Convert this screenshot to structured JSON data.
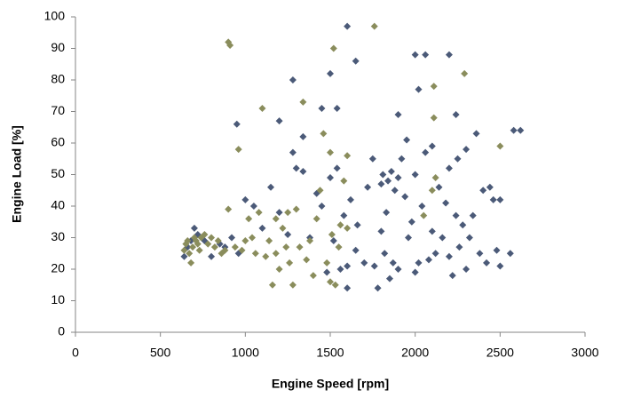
{
  "chart_data": {
    "type": "scatter",
    "x_label": "Engine Speed [rpm]",
    "y_label": "Engine Load [%]",
    "xlim": [
      0,
      3000
    ],
    "xticks": [
      0,
      500,
      1000,
      1500,
      2000,
      2500,
      3000
    ],
    "ylim": [
      0,
      100
    ],
    "yticks": [
      0,
      10,
      20,
      30,
      40,
      50,
      60,
      70,
      80,
      90,
      100
    ],
    "grid": false,
    "series": [
      {
        "color": "#4b5a78",
        "x": [
          640,
          660,
          680,
          700,
          720,
          760,
          800,
          850,
          880,
          920,
          960,
          1000,
          1050,
          1100,
          1150,
          1200,
          1250,
          1280,
          1300,
          1340,
          1380,
          1420,
          1450,
          1480,
          1500,
          1520,
          1540,
          1560,
          1580,
          1600,
          1600,
          1620,
          1650,
          1660,
          1700,
          1720,
          1750,
          1760,
          1780,
          1800,
          1800,
          1810,
          1820,
          1830,
          1840,
          1850,
          1860,
          1870,
          1880,
          1900,
          1900,
          1920,
          1940,
          1950,
          1960,
          1980,
          2000,
          2000,
          2020,
          2040,
          2060,
          2080,
          2100,
          2100,
          2120,
          2140,
          2160,
          2180,
          2200,
          2200,
          2220,
          2240,
          2250,
          2260,
          2280,
          2300,
          2300,
          2320,
          2340,
          2360,
          2380,
          2400,
          2420,
          2440,
          2460,
          2480,
          2500,
          2500,
          2560,
          2580,
          2620,
          1600,
          1500,
          1280,
          950,
          1200,
          2240,
          1900,
          1450,
          1540,
          1650,
          2020,
          2000,
          2060,
          2200,
          1340
        ],
        "y": [
          24,
          27,
          29,
          33,
          31,
          29,
          24,
          28,
          27,
          30,
          25,
          42,
          40,
          33,
          46,
          38,
          31,
          57,
          52,
          51,
          30,
          44,
          40,
          19,
          49,
          29,
          52,
          20,
          37,
          14,
          21,
          42,
          26,
          34,
          22,
          46,
          55,
          21,
          14,
          47,
          32,
          50,
          25,
          38,
          48,
          17,
          51,
          22,
          45,
          49,
          20,
          55,
          43,
          61,
          30,
          35,
          19,
          50,
          22,
          40,
          57,
          23,
          32,
          59,
          25,
          46,
          30,
          41,
          24,
          52,
          18,
          37,
          55,
          27,
          34,
          20,
          58,
          30,
          37,
          63,
          25,
          45,
          22,
          46,
          42,
          26,
          21,
          42,
          25,
          64,
          64,
          97,
          82,
          80,
          66,
          67,
          69,
          69,
          71,
          71,
          86,
          77,
          88,
          88,
          88,
          62
        ]
      },
      {
        "color": "#8a8d5c",
        "x": [
          640,
          650,
          660,
          670,
          680,
          690,
          700,
          710,
          720,
          730,
          740,
          760,
          780,
          800,
          820,
          840,
          860,
          880,
          900,
          900,
          910,
          940,
          960,
          980,
          1000,
          1020,
          1060,
          1080,
          1100,
          1120,
          1140,
          1160,
          1180,
          1200,
          1220,
          1240,
          1260,
          1280,
          1300,
          1320,
          1340,
          1360,
          1380,
          1400,
          1420,
          1440,
          1460,
          1480,
          1500,
          1510,
          1520,
          1530,
          1550,
          1560,
          1580,
          1600,
          1600,
          1760,
          2050,
          2100,
          2110,
          2110,
          2120,
          2290,
          2500,
          1500,
          1250,
          1180,
          1040
        ],
        "y": [
          26,
          28,
          29,
          25,
          22,
          27,
          30,
          29,
          28,
          26,
          30,
          31,
          28,
          30,
          27,
          29,
          25,
          26,
          39,
          92,
          91,
          27,
          58,
          26,
          29,
          36,
          25,
          38,
          71,
          24,
          29,
          15,
          36,
          20,
          33,
          27,
          22,
          15,
          39,
          27,
          73,
          23,
          29,
          18,
          36,
          45,
          63,
          22,
          16,
          31,
          90,
          15,
          27,
          34,
          48,
          56,
          33,
          97,
          37,
          45,
          68,
          78,
          49,
          82,
          59,
          57,
          38,
          25,
          30
        ]
      }
    ]
  }
}
